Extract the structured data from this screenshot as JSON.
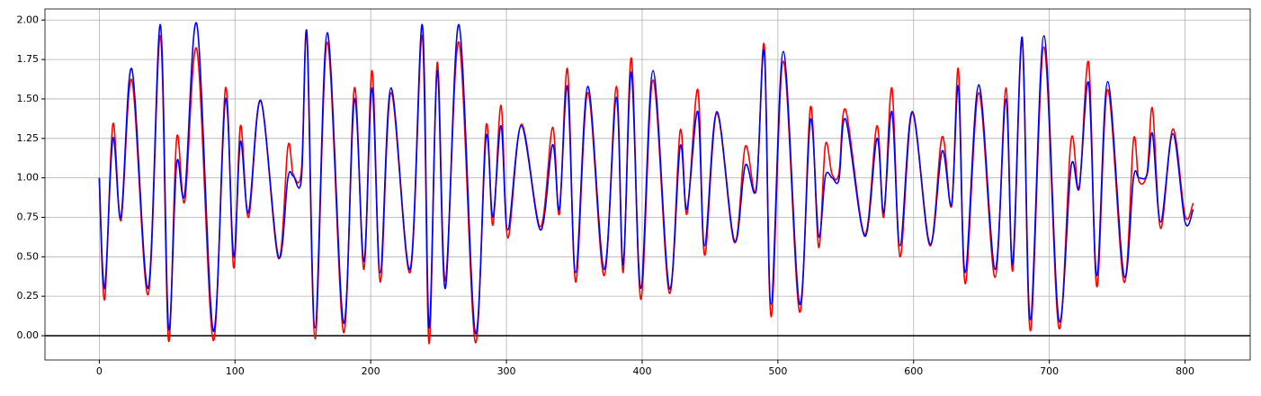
{
  "chart_data": {
    "type": "line",
    "x": [
      0,
      4,
      10,
      16,
      24,
      36,
      45,
      51,
      57,
      63,
      72,
      84,
      93,
      99,
      104,
      110,
      119,
      132,
      139,
      143,
      149,
      153,
      159,
      168,
      180,
      188,
      195,
      201,
      207,
      215,
      229,
      238,
      243,
      249,
      255,
      265,
      277,
      285,
      290,
      296,
      301,
      311,
      325,
      334,
      339,
      345,
      351,
      360,
      372,
      381,
      386,
      392,
      399,
      408,
      420,
      428,
      433,
      441,
      446,
      455,
      468,
      476,
      484,
      490,
      495,
      504,
      516,
      524,
      530,
      535,
      540,
      545,
      550,
      564,
      573,
      578,
      584,
      590,
      599,
      612,
      621,
      628,
      633,
      638,
      648,
      660,
      668,
      673,
      680,
      686,
      696,
      707,
      716,
      722,
      729,
      735,
      743,
      755,
      762,
      766,
      772,
      776,
      782,
      791,
      800,
      806
    ],
    "series": [
      {
        "color": "#ff0000",
        "values": [
          1.0,
          0.23,
          1.34,
          0.73,
          1.62,
          0.26,
          1.9,
          -0.03,
          1.25,
          0.85,
          1.81,
          -0.03,
          1.57,
          0.43,
          1.33,
          0.75,
          1.49,
          0.49,
          1.2,
          1.02,
          1.05,
          1.9,
          -0.02,
          1.86,
          0.02,
          1.57,
          0.42,
          1.68,
          0.34,
          1.54,
          0.4,
          1.9,
          -0.05,
          1.73,
          0.35,
          1.86,
          -0.04,
          1.33,
          0.7,
          1.46,
          0.62,
          1.34,
          0.69,
          1.32,
          0.77,
          1.69,
          0.34,
          1.54,
          0.38,
          1.58,
          0.4,
          1.76,
          0.23,
          1.62,
          0.27,
          1.3,
          0.77,
          1.56,
          0.51,
          1.41,
          0.59,
          1.2,
          0.92,
          1.84,
          0.12,
          1.74,
          0.15,
          1.45,
          0.56,
          1.21,
          1.02,
          1.03,
          1.43,
          0.64,
          1.33,
          0.75,
          1.57,
          0.5,
          1.41,
          0.57,
          1.26,
          0.82,
          1.69,
          0.33,
          1.54,
          0.37,
          1.57,
          0.41,
          1.87,
          0.03,
          1.83,
          0.05,
          1.24,
          0.93,
          1.73,
          0.31,
          1.56,
          0.34,
          1.24,
          0.98,
          1.03,
          1.44,
          0.68,
          1.31,
          0.76,
          0.84
        ]
      },
      {
        "color": "#0000ff",
        "values": [
          1.0,
          0.3,
          1.25,
          0.75,
          1.69,
          0.3,
          1.97,
          0.05,
          1.09,
          0.9,
          1.97,
          0.03,
          1.5,
          0.5,
          1.23,
          0.78,
          1.49,
          0.5,
          1.0,
          1.01,
          1.0,
          1.92,
          0.05,
          1.92,
          0.08,
          1.5,
          0.47,
          1.57,
          0.4,
          1.57,
          0.42,
          1.97,
          0.05,
          1.68,
          0.3,
          1.97,
          0.02,
          1.26,
          0.75,
          1.33,
          0.67,
          1.33,
          0.67,
          1.21,
          0.8,
          1.58,
          0.4,
          1.58,
          0.42,
          1.51,
          0.45,
          1.67,
          0.3,
          1.68,
          0.3,
          1.2,
          0.8,
          1.42,
          0.57,
          1.42,
          0.6,
          1.08,
          0.93,
          1.8,
          0.2,
          1.8,
          0.2,
          1.37,
          0.63,
          1.01,
          1.0,
          0.99,
          1.37,
          0.63,
          1.25,
          0.78,
          1.42,
          0.57,
          1.42,
          0.58,
          1.17,
          0.83,
          1.58,
          0.4,
          1.59,
          0.42,
          1.5,
          0.45,
          1.89,
          0.1,
          1.9,
          0.1,
          1.07,
          0.94,
          1.6,
          0.38,
          1.61,
          0.38,
          1.0,
          1.0,
          1.02,
          1.28,
          0.72,
          1.28,
          0.72,
          0.8
        ]
      }
    ],
    "xlim": [
      -40,
      848
    ],
    "ylim": [
      -0.154,
      2.07
    ],
    "xticks": [
      0,
      100,
      200,
      300,
      400,
      500,
      600,
      700,
      800
    ],
    "yticks": [
      {
        "value": 0,
        "label": "0.00"
      },
      {
        "value": 0.25,
        "label": "0.25"
      },
      {
        "value": 0.5,
        "label": "0.50"
      },
      {
        "value": 0.75,
        "label": "0.75"
      },
      {
        "value": 1,
        "label": "1.00"
      },
      {
        "value": 1.25,
        "label": "1.25"
      },
      {
        "value": 1.5,
        "label": "1.50"
      },
      {
        "value": 1.75,
        "label": "1.75"
      },
      {
        "value": 2,
        "label": "2.00"
      }
    ],
    "grid": true,
    "hline": 0
  }
}
